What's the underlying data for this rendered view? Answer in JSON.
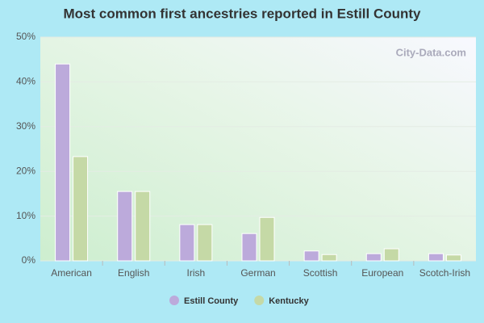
{
  "chart_data": {
    "type": "bar",
    "title": "Most common first ancestries reported in Estill County",
    "watermark": "City-Data.com",
    "categories": [
      "American",
      "English",
      "Irish",
      "German",
      "Scottish",
      "European",
      "Scotch-Irish"
    ],
    "series": [
      {
        "name": "Estill County",
        "color": "#bcaadb",
        "values": [
          44.0,
          15.5,
          8.1,
          6.1,
          2.2,
          1.6,
          1.6
        ]
      },
      {
        "name": "Kentucky",
        "color": "#c5d9a6",
        "values": [
          23.3,
          15.5,
          8.1,
          9.7,
          1.4,
          2.7,
          1.3
        ]
      }
    ],
    "ylim": [
      0,
      50
    ],
    "yticks": [
      {
        "value": 0,
        "label": "0%"
      },
      {
        "value": 10,
        "label": "10%"
      },
      {
        "value": 20,
        "label": "20%"
      },
      {
        "value": 30,
        "label": "30%"
      },
      {
        "value": 40,
        "label": "40%"
      },
      {
        "value": 50,
        "label": "50%"
      }
    ],
    "grid": true
  }
}
